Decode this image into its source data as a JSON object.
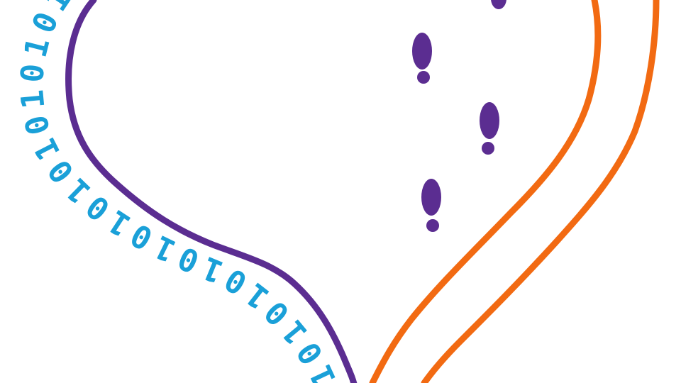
{
  "colors": {
    "background": "#ffffff",
    "heart_outline": "#5b2d91",
    "orange_lines": "#f26a12",
    "binary_text": "#1aa0d8",
    "footprints": "#5b2d91"
  },
  "binary_text": [
    "1",
    "0",
    "1",
    "0",
    "1",
    "0",
    "1",
    "0",
    "1",
    "0",
    "1",
    "0",
    "1",
    "0",
    "1",
    "0",
    "1",
    "0",
    "1",
    "0",
    "1"
  ],
  "footprint_count": 4,
  "orange_line_count": 2
}
